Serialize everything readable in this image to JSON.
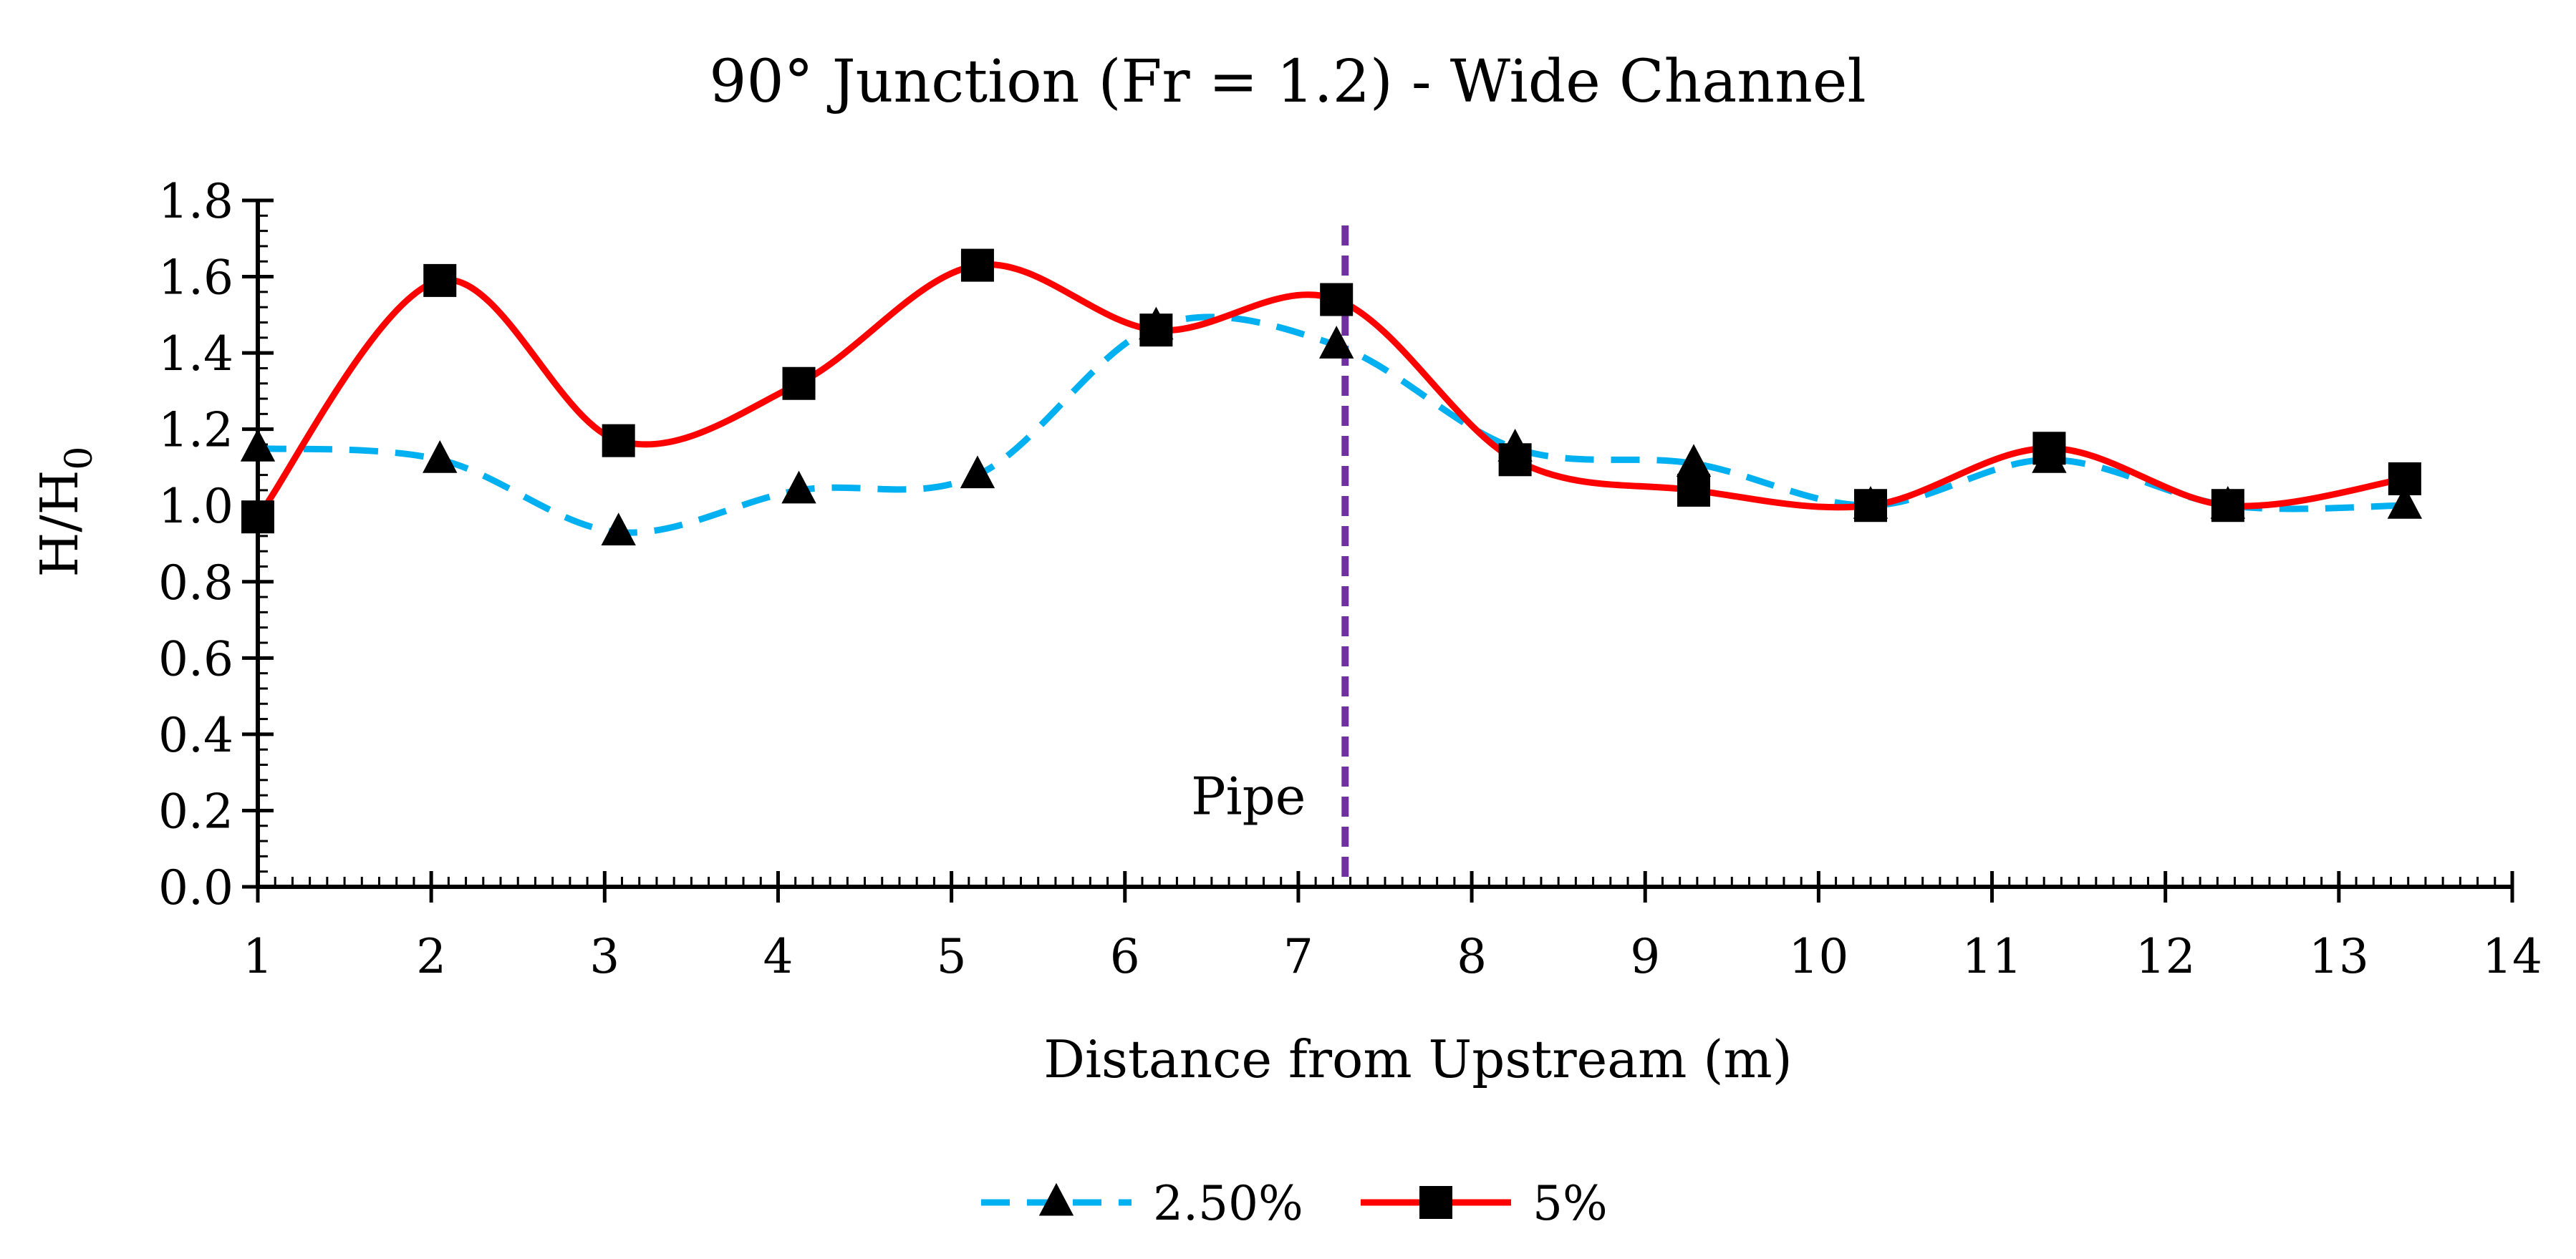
{
  "chart_data": {
    "type": "line",
    "title": "90° Junction (Fr = 1.2) - Wide Channel",
    "xlabel": "Distance from Upstream (m)",
    "ylabel": "H/H",
    "ylabel_subscript": "0",
    "xlim": [
      1,
      14
    ],
    "ylim": [
      0,
      1.8
    ],
    "x_ticks": [
      1,
      2,
      3,
      4,
      5,
      6,
      7,
      8,
      9,
      10,
      11,
      12,
      13,
      14
    ],
    "y_ticks": [
      0,
      0.2,
      0.4,
      0.6,
      0.8,
      1.0,
      1.2,
      1.4,
      1.6,
      1.8
    ],
    "y_tick_labels": [
      "0.0",
      "0.2",
      "0.4",
      "0.6",
      "0.8",
      "1.0",
      "1.2",
      "1.4",
      "1.6",
      "1.8"
    ],
    "smooth": true,
    "series": [
      {
        "name": "2.50%",
        "color": "#00B0F0",
        "line_style": "dashed",
        "marker": "triangle",
        "x": [
          1.0,
          2.05,
          3.08,
          4.12,
          5.15,
          6.18,
          7.22,
          8.25,
          9.28,
          10.3,
          11.33,
          12.36,
          13.38
        ],
        "y": [
          1.15,
          1.12,
          0.93,
          1.04,
          1.08,
          1.47,
          1.42,
          1.15,
          1.11,
          1.0,
          1.12,
          1.0,
          1.0
        ]
      },
      {
        "name": "5%",
        "color": "#FF0000",
        "line_style": "solid",
        "marker": "square",
        "x": [
          1.0,
          2.05,
          3.08,
          4.12,
          5.15,
          6.18,
          7.22,
          8.25,
          9.28,
          10.3,
          11.33,
          12.36,
          13.38
        ],
        "y": [
          0.97,
          1.59,
          1.17,
          1.32,
          1.63,
          1.46,
          1.54,
          1.12,
          1.04,
          1.0,
          1.15,
          1.0,
          1.07
        ]
      }
    ],
    "reference_line": {
      "x": 7.27,
      "label": "Pipe",
      "color": "#7030A0",
      "line_style": "dashed"
    },
    "legend_position": "bottom-center",
    "grid": false
  }
}
